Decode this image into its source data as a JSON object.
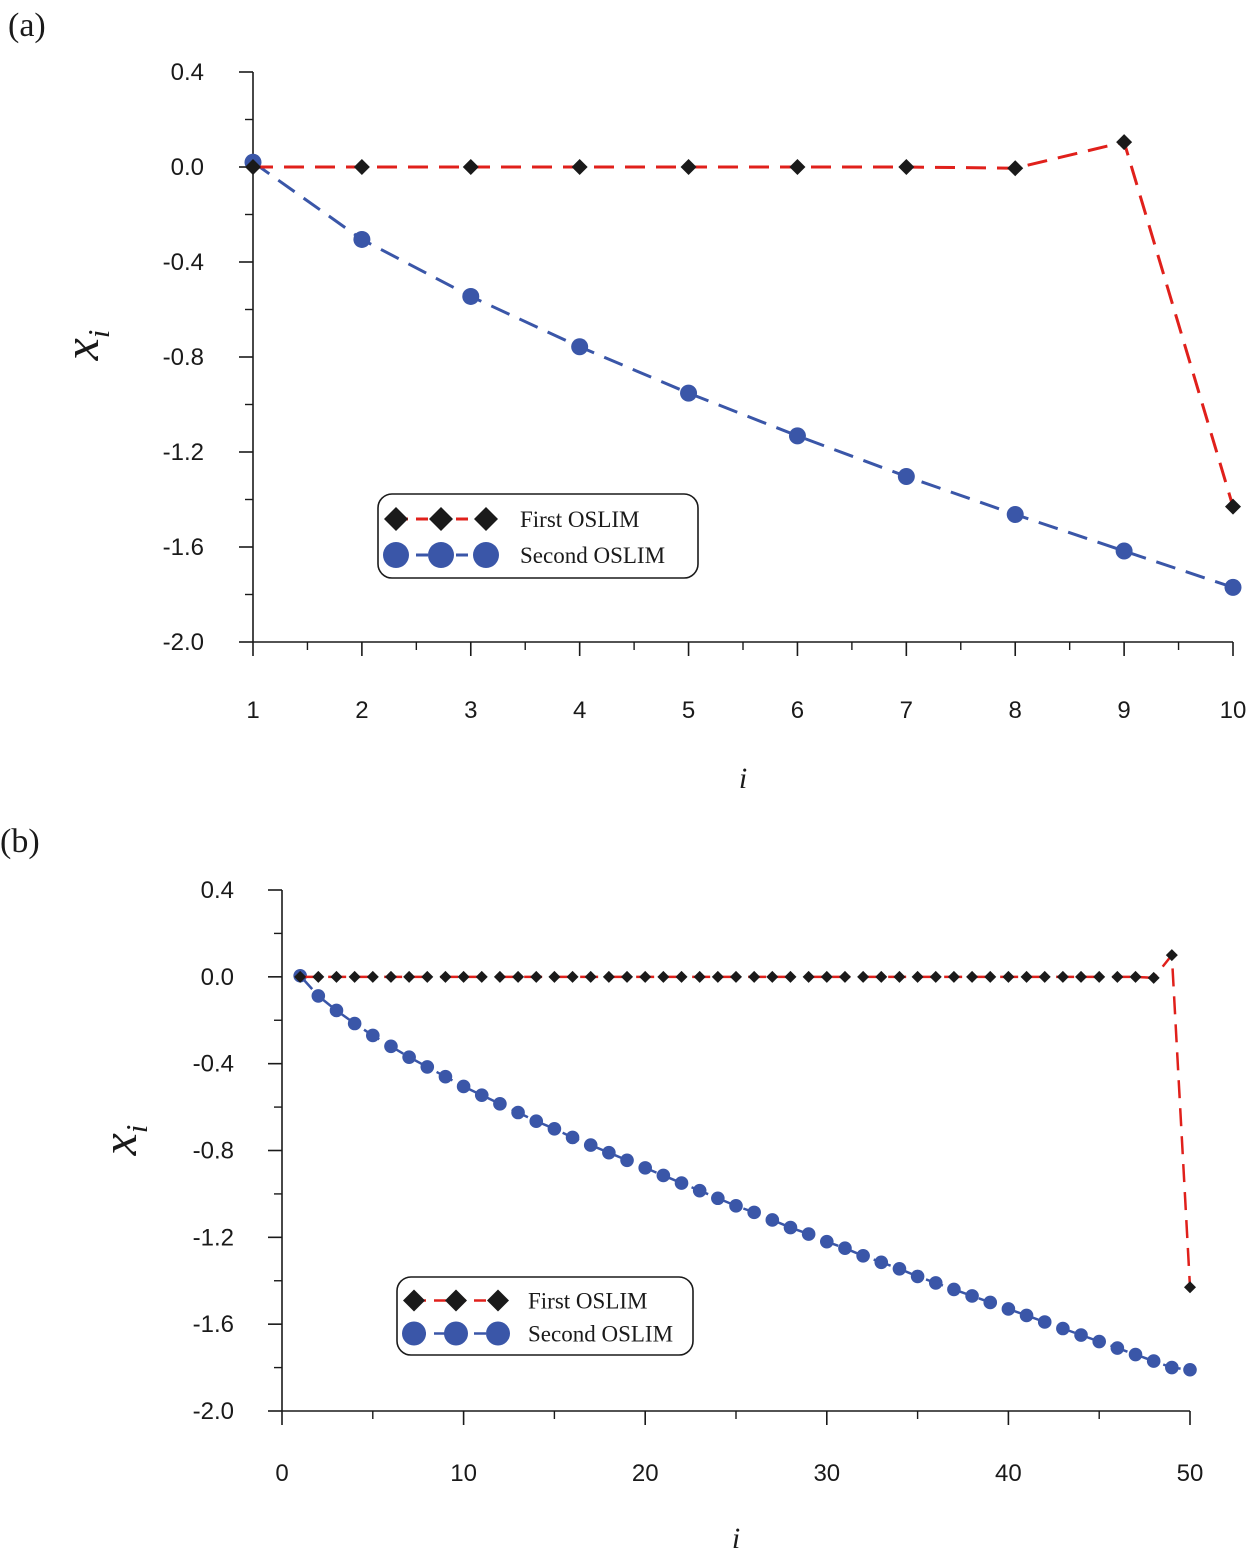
{
  "chart_data": [
    {
      "id": "a",
      "type": "line",
      "panel_label": "(a)",
      "xlabel": "i",
      "ylabel_main": "x",
      "ylabel_sub": "i",
      "xlim": [
        1,
        10
      ],
      "ylim": [
        -2.0,
        0.4
      ],
      "xticks": [
        1,
        2,
        3,
        4,
        5,
        6,
        7,
        8,
        9,
        10
      ],
      "xtick_labels": [
        "1",
        "2",
        "3",
        "4",
        "5",
        "6",
        "7",
        "8",
        "9",
        "10"
      ],
      "yticks": [
        0.4,
        0.0,
        -0.4,
        -0.8,
        -1.2,
        -1.6,
        -2.0
      ],
      "ytick_labels": [
        "0.4",
        "0.0",
        "-0.4",
        "-0.8",
        "-1.2",
        "-1.6",
        "-2.0"
      ],
      "legend_position": "bottom-left",
      "series": [
        {
          "name": "First OSLIM",
          "color": "#e0201b",
          "marker": "diamond",
          "marker_color": "#1a1a1a",
          "x": [
            1,
            2,
            3,
            4,
            5,
            6,
            7,
            8,
            9,
            10
          ],
          "values": [
            0.0,
            0.0,
            0.0,
            0.0,
            0.0,
            0.0,
            0.0,
            -0.005,
            0.105,
            -1.43
          ]
        },
        {
          "name": "Second OSLIM",
          "color": "#3a56a8",
          "marker": "circle",
          "marker_color": "#3a56a8",
          "x": [
            1,
            2,
            3,
            4,
            5,
            6,
            7,
            8,
            9,
            10
          ],
          "values": [
            0.02,
            -0.305,
            -0.545,
            -0.757,
            -0.952,
            -1.132,
            -1.303,
            -1.463,
            -1.617,
            -1.77
          ]
        }
      ]
    },
    {
      "id": "b",
      "type": "line",
      "panel_label": "(b)",
      "xlabel": "i",
      "ylabel_main": "x",
      "ylabel_sub": "i",
      "xlim": [
        0,
        50
      ],
      "ylim": [
        -2.0,
        0.4
      ],
      "xticks": [
        0,
        10,
        20,
        30,
        40,
        50
      ],
      "xtick_labels": [
        "0",
        "10",
        "20",
        "30",
        "40",
        "50"
      ],
      "yticks": [
        0.4,
        0.0,
        -0.4,
        -0.8,
        -1.2,
        -1.6,
        -2.0
      ],
      "ytick_labels": [
        "0.4",
        "0.0",
        "-0.4",
        "-0.8",
        "-1.2",
        "-1.6",
        "-2.0"
      ],
      "legend_position": "bottom-left",
      "series": [
        {
          "name": "First OSLIM",
          "color": "#e0201b",
          "marker": "diamond",
          "marker_color": "#1a1a1a",
          "x": [
            1,
            2,
            3,
            4,
            5,
            6,
            7,
            8,
            9,
            10,
            11,
            12,
            13,
            14,
            15,
            16,
            17,
            18,
            19,
            20,
            21,
            22,
            23,
            24,
            25,
            26,
            27,
            28,
            29,
            30,
            31,
            32,
            33,
            34,
            35,
            36,
            37,
            38,
            39,
            40,
            41,
            42,
            43,
            44,
            45,
            46,
            47,
            48,
            49,
            50
          ],
          "values": [
            0,
            0,
            0,
            0,
            0,
            0,
            0,
            0,
            0,
            0,
            0,
            0,
            0,
            0,
            0,
            0,
            0,
            0,
            0,
            0,
            0,
            0,
            0,
            0,
            0,
            0,
            0,
            0,
            0,
            0,
            0,
            0,
            0,
            0,
            0,
            0,
            0,
            0,
            0,
            0,
            0,
            0,
            0,
            0,
            0,
            0,
            0,
            -0.005,
            0.1,
            -1.43
          ]
        },
        {
          "name": "Second OSLIM",
          "color": "#3a56a8",
          "marker": "circle",
          "marker_color": "#3a56a8",
          "x": [
            1,
            2,
            3,
            4,
            5,
            6,
            7,
            8,
            9,
            10,
            11,
            12,
            13,
            14,
            15,
            16,
            17,
            18,
            19,
            20,
            21,
            22,
            23,
            24,
            25,
            26,
            27,
            28,
            29,
            30,
            31,
            32,
            33,
            34,
            35,
            36,
            37,
            38,
            39,
            40,
            41,
            42,
            43,
            44,
            45,
            46,
            47,
            48,
            49,
            50
          ],
          "values": [
            0.005,
            -0.088,
            -0.155,
            -0.215,
            -0.27,
            -0.32,
            -0.37,
            -0.415,
            -0.46,
            -0.505,
            -0.545,
            -0.585,
            -0.625,
            -0.665,
            -0.7,
            -0.74,
            -0.775,
            -0.81,
            -0.845,
            -0.88,
            -0.915,
            -0.95,
            -0.985,
            -1.02,
            -1.055,
            -1.085,
            -1.12,
            -1.155,
            -1.185,
            -1.22,
            -1.25,
            -1.285,
            -1.315,
            -1.345,
            -1.38,
            -1.41,
            -1.44,
            -1.47,
            -1.5,
            -1.53,
            -1.56,
            -1.59,
            -1.62,
            -1.65,
            -1.68,
            -1.71,
            -1.74,
            -1.77,
            -1.8,
            -1.81
          ]
        }
      ]
    }
  ]
}
